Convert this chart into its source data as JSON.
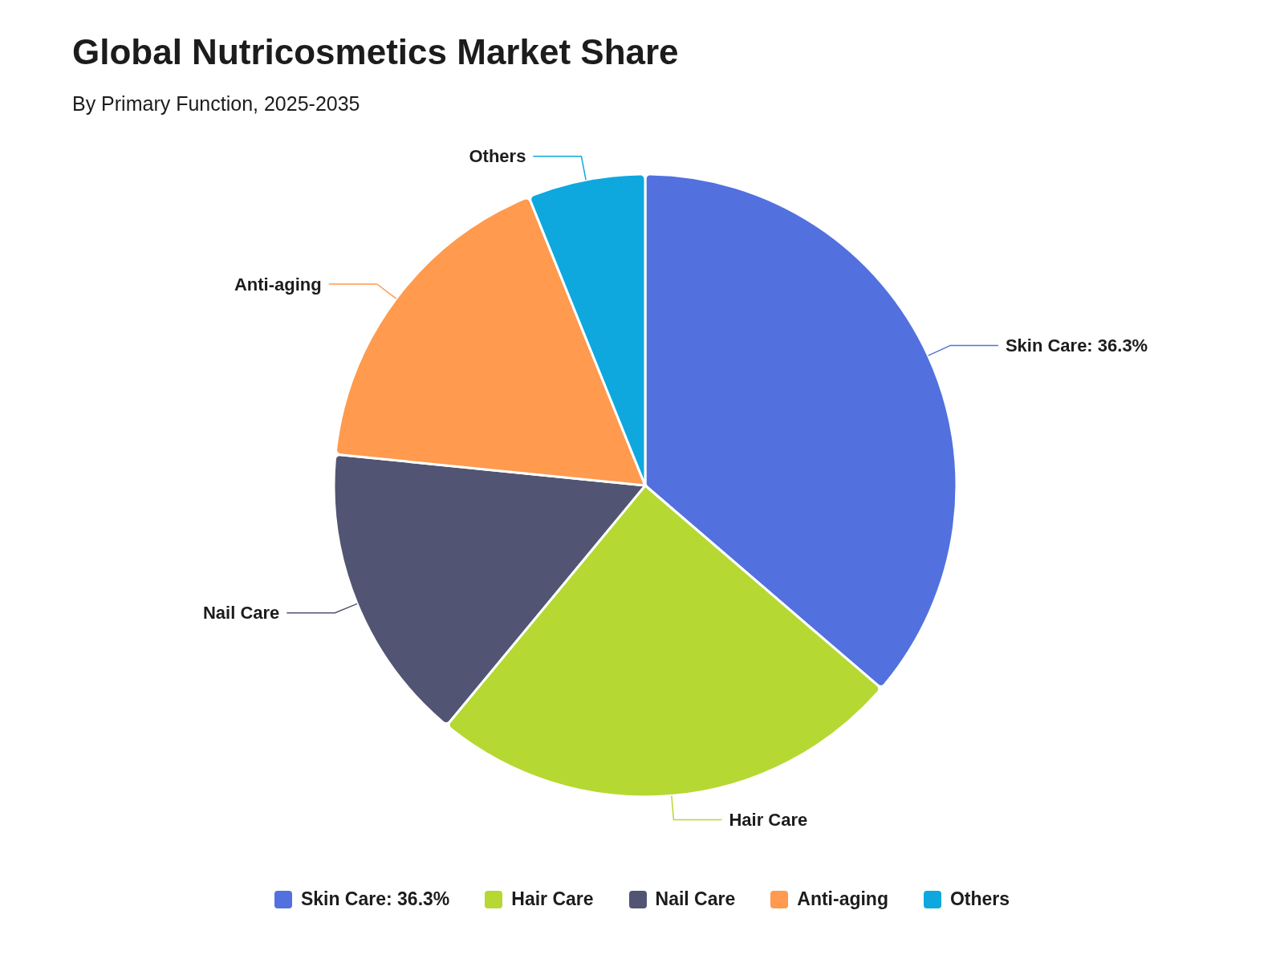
{
  "chart_data": {
    "type": "pie",
    "title": "Global Nutricosmetics Market Share",
    "subtitle": "By Primary Function, 2025-2035",
    "categories": [
      "Skin Care: 36.3%",
      "Hair Care",
      "Nail Care",
      "Anti-aging",
      "Others"
    ],
    "values": [
      36.3,
      24.7,
      15.6,
      17.3,
      6.1
    ],
    "colors": [
      "#5271df",
      "#b6d832",
      "#515472",
      "#ff9a4e",
      "#0ea8df"
    ],
    "legend": "bottom"
  }
}
